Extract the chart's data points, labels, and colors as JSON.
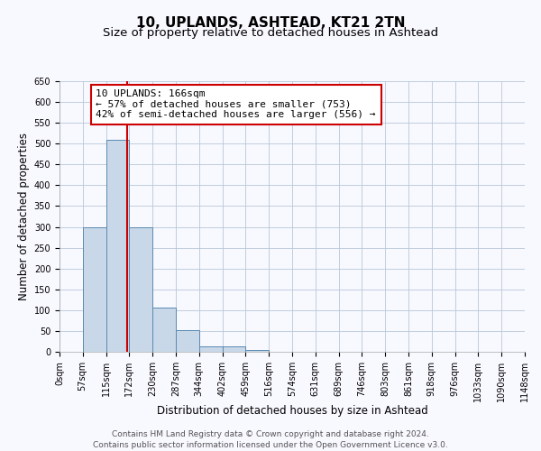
{
  "title": "10, UPLANDS, ASHTEAD, KT21 2TN",
  "subtitle": "Size of property relative to detached houses in Ashtead",
  "xlabel": "Distribution of detached houses by size in Ashtead",
  "ylabel": "Number of detached properties",
  "footer_lines": [
    "Contains HM Land Registry data © Crown copyright and database right 2024.",
    "Contains public sector information licensed under the Open Government Licence v3.0."
  ],
  "bin_edges": [
    0,
    57,
    115,
    172,
    230,
    287,
    344,
    402,
    459,
    516,
    574,
    631,
    689,
    746,
    803,
    861,
    918,
    976,
    1033,
    1090,
    1148
  ],
  "bar_heights": [
    0,
    300,
    510,
    300,
    107,
    52,
    14,
    14,
    5,
    0,
    0,
    0,
    0,
    0,
    0,
    0,
    0,
    0,
    0,
    0
  ],
  "bar_color": "#c8d8e8",
  "bar_edge_color": "#5a8ab0",
  "property_line_x": 166,
  "property_line_color": "#cc0000",
  "annotation_line1": "10 UPLANDS: 166sqm",
  "annotation_line2": "← 57% of detached houses are smaller (753)",
  "annotation_line3": "42% of semi-detached houses are larger (556) →",
  "annotation_box_color": "#cc0000",
  "ylim": [
    0,
    650
  ],
  "yticks": [
    0,
    50,
    100,
    150,
    200,
    250,
    300,
    350,
    400,
    450,
    500,
    550,
    600,
    650
  ],
  "tick_labels": [
    "0sqm",
    "57sqm",
    "115sqm",
    "172sqm",
    "230sqm",
    "287sqm",
    "344sqm",
    "402sqm",
    "459sqm",
    "516sqm",
    "574sqm",
    "631sqm",
    "689sqm",
    "746sqm",
    "803sqm",
    "861sqm",
    "918sqm",
    "976sqm",
    "1033sqm",
    "1090sqm",
    "1148sqm"
  ],
  "bg_color": "#f8f8ff",
  "grid_color": "#b8c8d8",
  "title_fontsize": 11,
  "subtitle_fontsize": 9.5,
  "axis_label_fontsize": 8.5,
  "tick_fontsize": 7,
  "annotation_fontsize": 8,
  "footer_fontsize": 6.5
}
